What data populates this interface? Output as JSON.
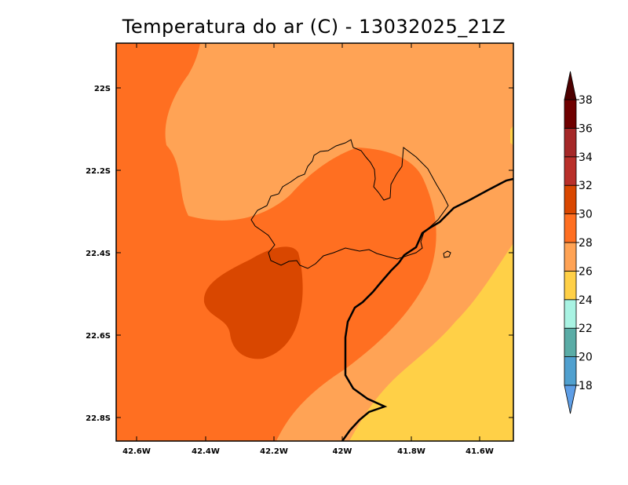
{
  "title": "Temperatura do ar (C) - 13032025_21Z",
  "map": {
    "lat_ticks": [
      "22S",
      "22.2S",
      "22.4S",
      "22.6S",
      "22.8S"
    ],
    "lon_ticks": [
      "42.6W",
      "42.4W",
      "42.2W",
      "42W",
      "41.8W",
      "41.6W"
    ],
    "regions": [
      {
        "name": "temp-26-28-band",
        "color": "#ffa355"
      },
      {
        "name": "temp-28-30-band",
        "color": "#ff6f21"
      },
      {
        "name": "temp-30-32-band",
        "color": "#d94700"
      },
      {
        "name": "temp-24-26-band",
        "color": "#ffd047"
      }
    ]
  },
  "colorbar": {
    "levels": [
      "18",
      "20",
      "22",
      "24",
      "26",
      "28",
      "30",
      "32",
      "34",
      "36",
      "38"
    ],
    "colors": [
      "#5e9ee6",
      "#50a0cf",
      "#5aaca6",
      "#a9f3e3",
      "#ffd047",
      "#ffa355",
      "#ff6f21",
      "#d94700",
      "#b9302a",
      "#a52828",
      "#6f0000",
      "#4d0000"
    ],
    "low_color": "#5e9ee6",
    "high_color": "#4d0000"
  }
}
